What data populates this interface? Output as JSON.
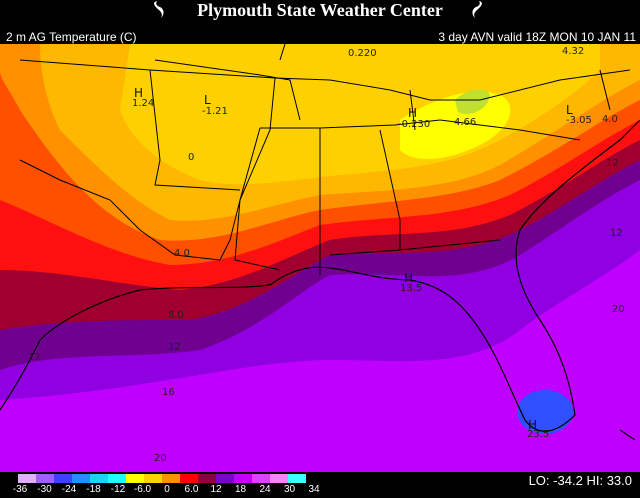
{
  "header": {
    "title": "Plymouth State Weather Center",
    "field": "2 m AG Temperature (C)",
    "run_info": "3 day AVN valid 18Z MON 10 JAN 11"
  },
  "map_labels": {
    "contours": [
      "0.220",
      "4.32",
      "1.24",
      "-1.21",
      "0",
      "-0.230",
      "4.66",
      "-3.05",
      "4.0",
      "12",
      "12",
      "4.0",
      "8.0",
      "12",
      "16",
      "20",
      "13.5",
      "20",
      "23.5",
      "12"
    ],
    "highs_lows": [
      "H",
      "L",
      "H",
      "L",
      "H",
      "H"
    ]
  },
  "legend": {
    "tick_labels": [
      "-36",
      "-30",
      "-24",
      "-18",
      "-12",
      "-6.0",
      "0",
      "6.0",
      "12",
      "18",
      "24",
      "30",
      "34"
    ],
    "colors": [
      "#e0b0ff",
      "#a060ff",
      "#4040ff",
      "#2090ff",
      "#20d0ff",
      "#20ffff",
      "#ffff00",
      "#ffd000",
      "#ff9000",
      "#ff0000",
      "#900040",
      "#8000c0",
      "#c000ff",
      "#e040ff",
      "#ff80ff",
      "#40ffff"
    ]
  },
  "stats": {
    "lo_label": "LO:",
    "lo_value": "-34.2",
    "hi_label": "HI:",
    "hi_value": "33.0"
  }
}
